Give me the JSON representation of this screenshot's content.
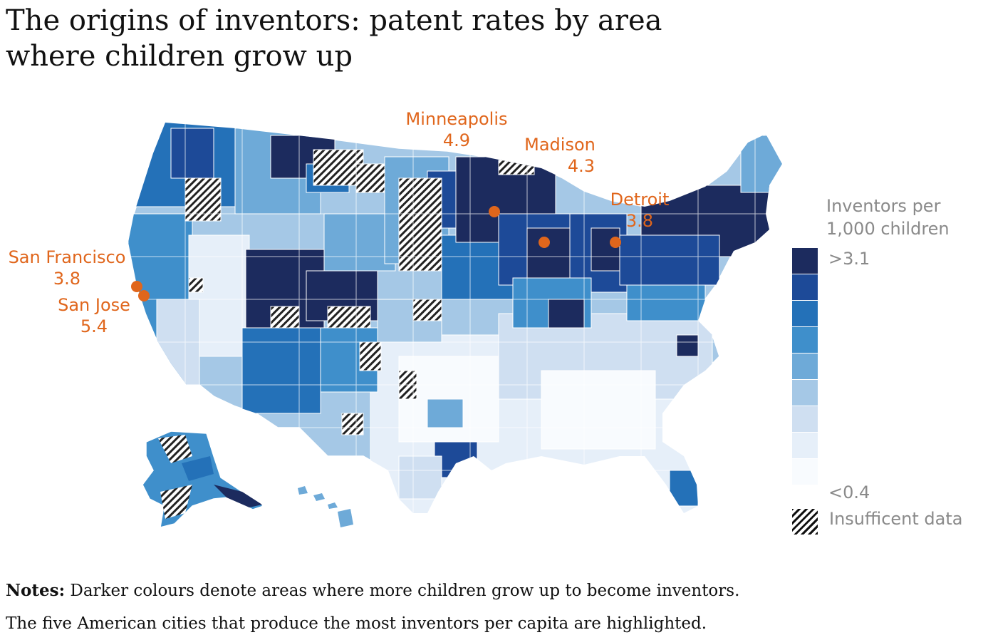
{
  "title": {
    "line1": "The origins of inventors: patent rates by area",
    "line2": "where children grow up"
  },
  "cities": [
    {
      "name": "Minneapolis",
      "value": "4.9"
    },
    {
      "name": "Madison",
      "value": "4.3"
    },
    {
      "name": "Detroit",
      "value": "3.8"
    },
    {
      "name": "San Francisco",
      "value": "3.8"
    },
    {
      "name": "San Jose",
      "value": "5.4"
    }
  ],
  "legend": {
    "title_line1": "Inventors per",
    "title_line2": "1,000 children",
    "max_label": ">3.1",
    "min_label": "<0.4",
    "insufficient_label": "Insufficent data",
    "colors": [
      "#1c2b5e",
      "#1d4a98",
      "#2471b8",
      "#3f8fcb",
      "#6eaad8",
      "#a5c8e6",
      "#cfdff1",
      "#e6eff9",
      "#f8fbfe"
    ]
  },
  "colors": {
    "highlight": "#e0661c",
    "insufficient": "#111111"
  },
  "notes": {
    "label": "Notes:",
    "line1": "Darker colours denote areas where more children grow up to become inventors.",
    "line2": "The five American cities that produce the most inventors per capita are highlighted."
  }
}
